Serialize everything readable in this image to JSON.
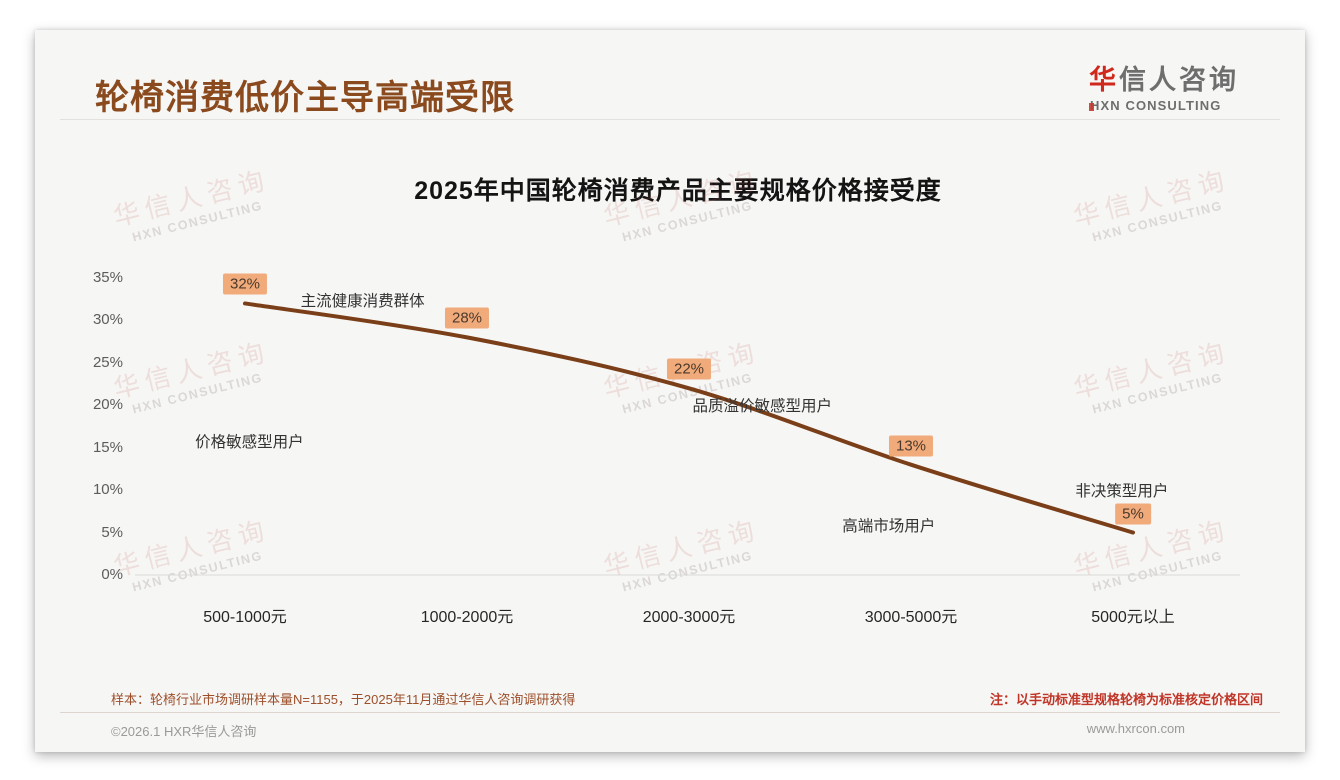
{
  "page": {
    "title": "轮椅消费低价主导高端受限",
    "logo": {
      "main_prefix": "华",
      "main_rest": "信人咨询",
      "sub": "HXN CONSULTING"
    },
    "watermark": {
      "line1": "华信人咨询",
      "line2": "HXN CONSULTING"
    },
    "footer": {
      "sample_note": "样本：轮椅行业市场调研样本量N=1155，于2025年11月通过华信人咨询调研获得",
      "price_note": "注：以手动标准型规格轮椅为标准核定价格区间",
      "copyright": "©2026.1 HXR华信人咨询",
      "website": "www.hxrcon.com"
    }
  },
  "chart_data": {
    "type": "line",
    "title": "2025年中国轮椅消费产品主要规格价格接受度",
    "categories": [
      "500-1000元",
      "1000-2000元",
      "2000-3000元",
      "3000-5000元",
      "5000元以上"
    ],
    "values": [
      32,
      28,
      22,
      13,
      5
    ],
    "value_labels": [
      "32%",
      "28%",
      "22%",
      "13%",
      "5%"
    ],
    "ylim": [
      0,
      35
    ],
    "ytick_step": 5,
    "ytick_labels": [
      "0%",
      "5%",
      "10%",
      "15%",
      "20%",
      "25%",
      "30%",
      "35%"
    ],
    "xlabel": "",
    "ylabel": "",
    "grid": "baseline-only",
    "legend": "none",
    "line_color": "#7a3f18",
    "label_bg": "#f1ab7b",
    "annotations": [
      {
        "text": "主流健康消费群体",
        "cx": 0.53,
        "vy": 32.4
      },
      {
        "text": "价格敏感型用户",
        "cx": 0.02,
        "vy": 15.8
      },
      {
        "text": "品质溢价敏感型用户",
        "cx": 2.33,
        "vy": 20.0
      },
      {
        "text": "高端市场用户",
        "cx": 2.9,
        "vy": 5.9
      },
      {
        "text": "非决策型用户",
        "cx": 3.95,
        "vy": 10.0
      }
    ]
  }
}
